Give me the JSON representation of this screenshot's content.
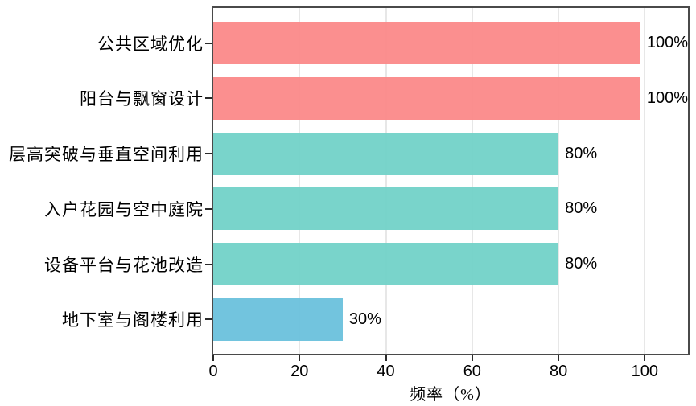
{
  "chart_data": {
    "type": "bar",
    "orientation": "horizontal",
    "title": "",
    "categories": [
      "公共区域优化",
      "阳台与飘窗设计",
      "层高突破与垂直空间利用",
      "入户花园与空中庭院",
      "设备平台与花池改造",
      "地下室与阁楼利用"
    ],
    "values": [
      100,
      100,
      80,
      80,
      80,
      30
    ],
    "value_labels": [
      "100%",
      "100%",
      "80%",
      "80%",
      "80%",
      "30%"
    ],
    "bar_colors": [
      "#fb8686",
      "#fb8686",
      "#6fd1c7",
      "#6fd1c7",
      "#6fd1c7",
      "#67c0db"
    ],
    "x_ticks": [
      0,
      20,
      40,
      60,
      80,
      100
    ],
    "xlim": [
      0,
      110
    ],
    "xlabel": "频率（%）",
    "ylabel": "",
    "grid": "vertical",
    "legend": "none"
  },
  "style": {
    "axis_color": "#4a4a4a",
    "grid_color": "#e7e7e7",
    "tick_color": "#2b2b2b",
    "text_color": "#000000",
    "background": "#ffffff"
  }
}
